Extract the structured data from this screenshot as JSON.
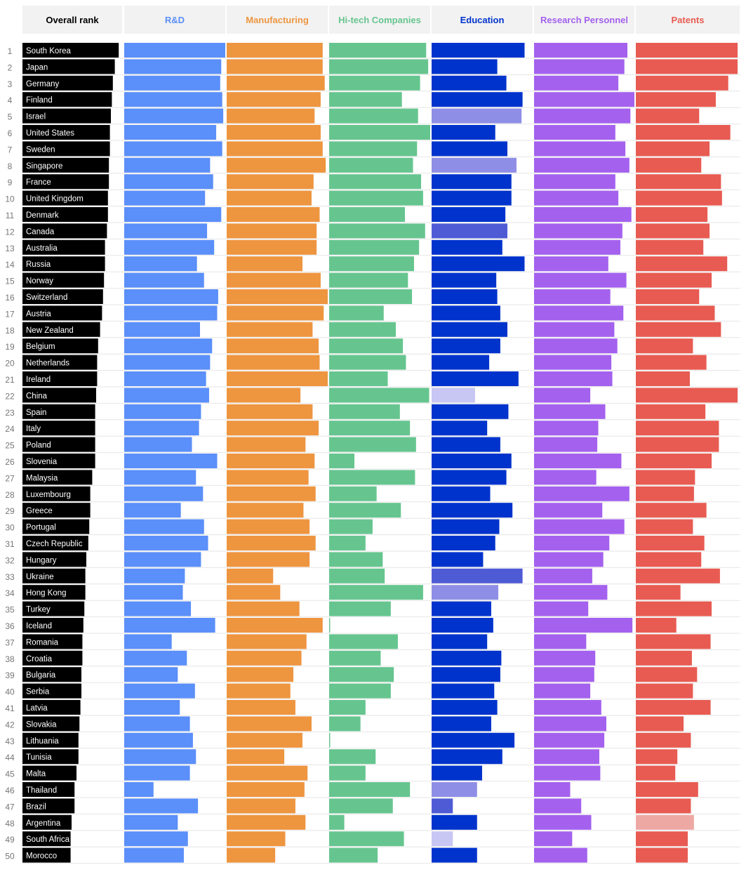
{
  "chart_data": {
    "type": "bar",
    "headers": [
      "Overall rank",
      "R&D",
      "Manufacturing",
      "Hi-tech Companies",
      "Education",
      "Research Personnel",
      "Patents"
    ],
    "colors": {
      "R&D": "#5b8ff9",
      "Manufacturing": "#ee9540",
      "Hi-tech Companies": "#66c58f",
      "Education": "#0033cc",
      "Education_mid": "#4f5bd5",
      "Education_light": "#8f8ee6",
      "Education_pale": "#c8c6f2",
      "Research Personnel": "#a461ee",
      "Patents": "#e85b52",
      "Patents_light": "#eea8a4",
      "Overall rank": "#000000",
      "header_bg": "#f2f2f2"
    },
    "header_colors": {
      "Overall rank": "#000000",
      "R&D": "#5b8ff9",
      "Manufacturing": "#ee9540",
      "Hi-tech Companies": "#66c58f",
      "Education": "#0033cc",
      "Research Personnel": "#a461ee",
      "Patents": "#e85b52"
    },
    "rows": [
      {
        "rank": 1,
        "country": "South Korea",
        "overall": 0.98,
        "values": [
          1.0,
          0.95,
          0.96,
          0.92,
          0.93,
          0.98
        ]
      },
      {
        "rank": 2,
        "country": "Japan",
        "overall": 0.94,
        "values": [
          0.96,
          0.95,
          0.98,
          0.65,
          0.9,
          0.98
        ]
      },
      {
        "rank": 3,
        "country": "Germany",
        "overall": 0.92,
        "values": [
          0.95,
          0.97,
          0.9,
          0.74,
          0.84,
          0.89
        ]
      },
      {
        "rank": 4,
        "country": "Finland",
        "overall": 0.91,
        "values": [
          0.97,
          0.93,
          0.72,
          0.9,
          1.0,
          0.77
        ]
      },
      {
        "rank": 5,
        "country": "Israel",
        "overall": 0.9,
        "values": [
          0.98,
          0.87,
          0.88,
          0.89,
          0.96,
          0.61
        ],
        "shades": [
          null,
          null,
          null,
          "Education_light",
          null,
          null
        ]
      },
      {
        "rank": 6,
        "country": "United States",
        "overall": 0.89,
        "values": [
          0.91,
          0.93,
          1.0,
          0.63,
          0.81,
          0.91
        ]
      },
      {
        "rank": 7,
        "country": "Sweden",
        "overall": 0.89,
        "values": [
          0.97,
          0.95,
          0.87,
          0.75,
          0.91,
          0.71
        ]
      },
      {
        "rank": 8,
        "country": "Singapore",
        "overall": 0.88,
        "values": [
          0.85,
          0.98,
          0.83,
          0.84,
          0.95,
          0.63
        ],
        "shades": [
          null,
          null,
          null,
          "Education_light",
          null,
          null
        ]
      },
      {
        "rank": 9,
        "country": "France",
        "overall": 0.88,
        "values": [
          0.88,
          0.86,
          0.91,
          0.79,
          0.81,
          0.82
        ]
      },
      {
        "rank": 10,
        "country": "United Kingdom",
        "overall": 0.87,
        "values": [
          0.8,
          0.84,
          0.93,
          0.79,
          0.84,
          0.83
        ]
      },
      {
        "rank": 11,
        "country": "Denmark",
        "overall": 0.87,
        "values": [
          0.96,
          0.92,
          0.75,
          0.73,
          0.97,
          0.69
        ]
      },
      {
        "rank": 12,
        "country": "Canada",
        "overall": 0.86,
        "values": [
          0.82,
          0.89,
          0.95,
          0.75,
          0.88,
          0.71
        ],
        "shades": [
          null,
          null,
          null,
          "Education_mid",
          null,
          null
        ]
      },
      {
        "rank": 13,
        "country": "Australia",
        "overall": 0.84,
        "values": [
          0.89,
          0.89,
          0.89,
          0.7,
          0.86,
          0.65
        ]
      },
      {
        "rank": 14,
        "country": "Russia",
        "overall": 0.84,
        "values": [
          0.72,
          0.75,
          0.84,
          0.92,
          0.74,
          0.88
        ]
      },
      {
        "rank": 15,
        "country": "Norway",
        "overall": 0.83,
        "values": [
          0.79,
          0.93,
          0.78,
          0.64,
          0.92,
          0.73
        ]
      },
      {
        "rank": 16,
        "country": "Switzerland",
        "overall": 0.82,
        "values": [
          0.93,
          1.0,
          0.82,
          0.65,
          0.76,
          0.61
        ]
      },
      {
        "rank": 17,
        "country": "Austria",
        "overall": 0.81,
        "values": [
          0.92,
          0.96,
          0.54,
          0.68,
          0.89,
          0.76
        ]
      },
      {
        "rank": 18,
        "country": "New Zealand",
        "overall": 0.79,
        "values": [
          0.75,
          0.85,
          0.66,
          0.75,
          0.8,
          0.82
        ]
      },
      {
        "rank": 19,
        "country": "Belgium",
        "overall": 0.77,
        "values": [
          0.87,
          0.91,
          0.73,
          0.68,
          0.83,
          0.55
        ]
      },
      {
        "rank": 20,
        "country": "Netherlands",
        "overall": 0.76,
        "values": [
          0.85,
          0.92,
          0.76,
          0.57,
          0.77,
          0.68
        ]
      },
      {
        "rank": 21,
        "country": "Ireland",
        "overall": 0.76,
        "values": [
          0.81,
          1.0,
          0.58,
          0.86,
          0.78,
          0.52
        ]
      },
      {
        "rank": 22,
        "country": "China",
        "overall": 0.75,
        "values": [
          0.84,
          0.73,
          0.99,
          0.43,
          0.56,
          0.98
        ],
        "shades": [
          null,
          null,
          null,
          "Education_pale",
          null,
          null
        ]
      },
      {
        "rank": 23,
        "country": "Spain",
        "overall": 0.74,
        "values": [
          0.76,
          0.85,
          0.7,
          0.76,
          0.71,
          0.67
        ]
      },
      {
        "rank": 24,
        "country": "Italy",
        "overall": 0.74,
        "values": [
          0.74,
          0.91,
          0.8,
          0.55,
          0.64,
          0.8
        ]
      },
      {
        "rank": 25,
        "country": "Poland",
        "overall": 0.74,
        "values": [
          0.67,
          0.78,
          0.86,
          0.68,
          0.63,
          0.8
        ]
      },
      {
        "rank": 26,
        "country": "Slovenia",
        "overall": 0.74,
        "values": [
          0.92,
          0.87,
          0.25,
          0.79,
          0.87,
          0.73
        ]
      },
      {
        "rank": 27,
        "country": "Malaysia",
        "overall": 0.71,
        "values": [
          0.71,
          0.81,
          0.85,
          0.74,
          0.62,
          0.57
        ]
      },
      {
        "rank": 28,
        "country": "Luxembourg",
        "overall": 0.69,
        "values": [
          0.78,
          0.88,
          0.47,
          0.58,
          0.95,
          0.56
        ]
      },
      {
        "rank": 29,
        "country": "Greece",
        "overall": 0.69,
        "values": [
          0.56,
          0.76,
          0.71,
          0.8,
          0.68,
          0.68
        ]
      },
      {
        "rank": 30,
        "country": "Portugal",
        "overall": 0.68,
        "values": [
          0.79,
          0.82,
          0.43,
          0.67,
          0.9,
          0.55
        ]
      },
      {
        "rank": 31,
        "country": "Czech Republic",
        "overall": 0.67,
        "values": [
          0.83,
          0.88,
          0.36,
          0.63,
          0.75,
          0.66
        ]
      },
      {
        "rank": 32,
        "country": "Hungary",
        "overall": 0.65,
        "values": [
          0.76,
          0.82,
          0.53,
          0.51,
          0.69,
          0.63
        ]
      },
      {
        "rank": 33,
        "country": "Ukraine",
        "overall": 0.64,
        "values": [
          0.6,
          0.46,
          0.55,
          0.9,
          0.58,
          0.81
        ],
        "shades": [
          null,
          null,
          null,
          "Education_mid",
          null,
          null
        ]
      },
      {
        "rank": 34,
        "country": "Hong Kong",
        "overall": 0.64,
        "values": [
          0.58,
          0.53,
          0.93,
          0.66,
          0.73,
          0.43
        ],
        "shades": [
          null,
          null,
          null,
          "Education_light",
          null,
          null
        ]
      },
      {
        "rank": 35,
        "country": "Turkey",
        "overall": 0.63,
        "values": [
          0.66,
          0.72,
          0.61,
          0.59,
          0.54,
          0.73
        ]
      },
      {
        "rank": 36,
        "country": "Iceland",
        "overall": 0.62,
        "values": [
          0.9,
          0.95,
          0.01,
          0.61,
          0.98,
          0.39
        ]
      },
      {
        "rank": 37,
        "country": "Romania",
        "overall": 0.61,
        "values": [
          0.47,
          0.79,
          0.68,
          0.55,
          0.52,
          0.72
        ]
      },
      {
        "rank": 38,
        "country": "Croatia",
        "overall": 0.61,
        "values": [
          0.62,
          0.74,
          0.51,
          0.69,
          0.61,
          0.54
        ]
      },
      {
        "rank": 39,
        "country": "Bulgaria",
        "overall": 0.6,
        "values": [
          0.53,
          0.66,
          0.64,
          0.68,
          0.6,
          0.59
        ]
      },
      {
        "rank": 40,
        "country": "Serbia",
        "overall": 0.6,
        "values": [
          0.7,
          0.63,
          0.61,
          0.62,
          0.56,
          0.55
        ]
      },
      {
        "rank": 41,
        "country": "Latvia",
        "overall": 0.59,
        "values": [
          0.55,
          0.68,
          0.36,
          0.65,
          0.67,
          0.72
        ]
      },
      {
        "rank": 42,
        "country": "Slovakia",
        "overall": 0.58,
        "values": [
          0.65,
          0.84,
          0.31,
          0.59,
          0.72,
          0.46
        ]
      },
      {
        "rank": 43,
        "country": "Lithuania",
        "overall": 0.57,
        "values": [
          0.68,
          0.75,
          0.01,
          0.82,
          0.7,
          0.53
        ]
      },
      {
        "rank": 44,
        "country": "Tunisia",
        "overall": 0.57,
        "values": [
          0.71,
          0.57,
          0.46,
          0.7,
          0.65,
          0.4
        ]
      },
      {
        "rank": 45,
        "country": "Malta",
        "overall": 0.55,
        "values": [
          0.65,
          0.8,
          0.36,
          0.5,
          0.66,
          0.38
        ]
      },
      {
        "rank": 46,
        "country": "Thailand",
        "overall": 0.53,
        "values": [
          0.29,
          0.77,
          0.8,
          0.45,
          0.36,
          0.6
        ],
        "shades": [
          null,
          null,
          null,
          "Education_light",
          null,
          null
        ]
      },
      {
        "rank": 47,
        "country": "Brazil",
        "overall": 0.53,
        "values": [
          0.73,
          0.68,
          0.63,
          0.21,
          0.47,
          0.53
        ],
        "shades": [
          null,
          null,
          null,
          "Education_mid",
          null,
          null
        ]
      },
      {
        "rank": 48,
        "country": "Argentina",
        "overall": 0.5,
        "values": [
          0.53,
          0.78,
          0.15,
          0.45,
          0.57,
          0.56
        ],
        "shades": [
          null,
          null,
          null,
          null,
          null,
          "Patents_light"
        ]
      },
      {
        "rank": 49,
        "country": "South Africa",
        "overall": 0.49,
        "values": [
          0.63,
          0.58,
          0.74,
          0.21,
          0.38,
          0.5
        ],
        "shades": [
          null,
          null,
          null,
          "Education_pale",
          null,
          null
        ]
      },
      {
        "rank": 50,
        "country": "Morocco",
        "overall": 0.49,
        "values": [
          0.59,
          0.48,
          0.48,
          0.45,
          0.53,
          0.5
        ]
      }
    ]
  }
}
